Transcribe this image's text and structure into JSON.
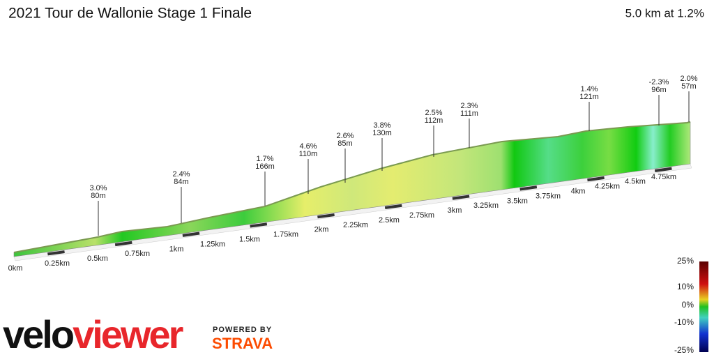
{
  "header": {
    "title": "2021 Tour de Wallonie Stage 1 Finale",
    "summary": "5.0 km at 1.2%"
  },
  "annotations": [
    {
      "grade": "3.0%",
      "length": "80m"
    },
    {
      "grade": "2.4%",
      "length": "84m"
    },
    {
      "grade": "1.7%",
      "length": "166m"
    },
    {
      "grade": "4.6%",
      "length": "110m"
    },
    {
      "grade": "2.6%",
      "length": "85m"
    },
    {
      "grade": "3.8%",
      "length": "130m"
    },
    {
      "grade": "2.5%",
      "length": "112m"
    },
    {
      "grade": "2.3%",
      "length": "111m"
    },
    {
      "grade": "1.4%",
      "length": "121m"
    },
    {
      "grade": "-2.3%",
      "length": "96m"
    },
    {
      "grade": "2.0%",
      "length": "57m"
    }
  ],
  "distance_labels": [
    "0km",
    "0.25km",
    "0.5km",
    "0.75km",
    "1km",
    "1.25km",
    "1.5km",
    "1.75km",
    "2km",
    "2.25km",
    "2.5km",
    "2.75km",
    "3km",
    "3.25km",
    "3.5km",
    "3.75km",
    "4km",
    "4.25km",
    "4.5km",
    "4.75km"
  ],
  "legend": {
    "labels": [
      "25%",
      "10%",
      "0%",
      "-10%",
      "-25%"
    ]
  },
  "branding": {
    "logo_velo": "velo",
    "logo_viewer": "viewer",
    "powered_by": "POWERED BY",
    "partner": "STRAVA"
  }
}
